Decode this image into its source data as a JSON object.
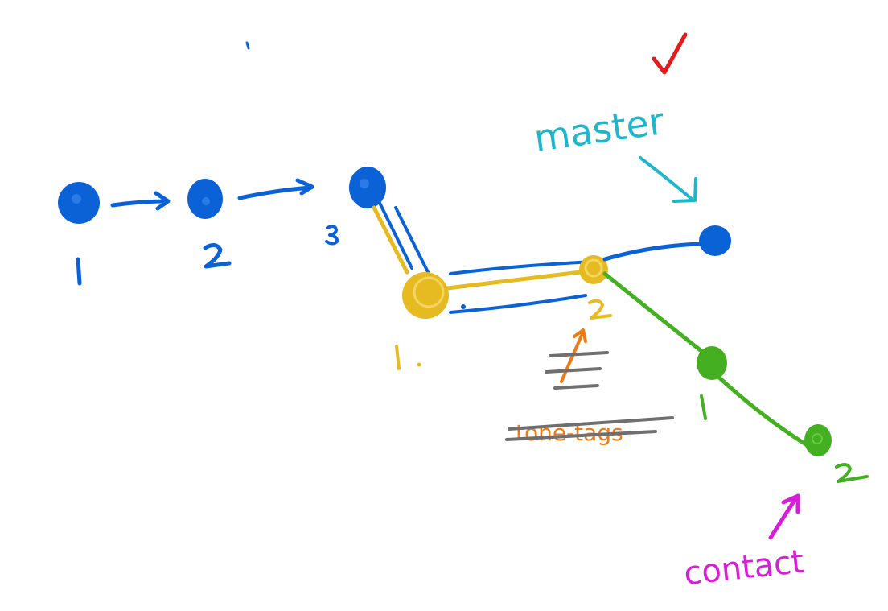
{
  "colors": {
    "blue": "#0b62d6",
    "yellow": "#e6bb22",
    "green": "#44b021",
    "cyan": "#1fb6cc",
    "magenta": "#d61fd6",
    "orange": "#ef7a12",
    "gray": "#6f6f6f",
    "red": "#e31b1b"
  },
  "labels": {
    "blue_1": "1",
    "blue_2": "2",
    "blue_3": "3",
    "yellow_1": "1.",
    "yellow_2": "2",
    "green_1": "1",
    "green_2": "2",
    "master": "master",
    "contact": "contact",
    "check": "✓",
    "scribble": "tone-tags"
  },
  "icons": {
    "checkmark": "checkmark-icon",
    "master_arrow": "arrow-down-right-icon",
    "contact_arrow": "arrow-up-right-icon",
    "orange_arrow": "arrow-up-right-icon"
  }
}
